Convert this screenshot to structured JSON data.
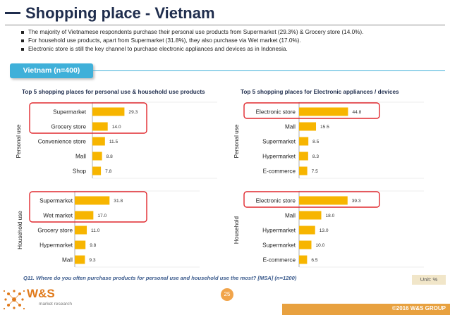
{
  "header": {
    "title": "Shopping place - Vietnam"
  },
  "bullets": [
    "The majority of Vietnamese respondents purchase their personal use products from Supermarket (29.3%) & Grocery store (14.0%).",
    "For household use products, apart from Supermarket (31.8%), they also purchase via Wet market (17.0%).",
    "Electronic store is still the key channel to purchase electronic appliances and devices as in Indonesia."
  ],
  "badge": {
    "label": "Vietnam (n=400)"
  },
  "colors": {
    "bar": "#f7b500",
    "highlight": "#e0282e",
    "accent": "#3fb0d9",
    "title": "#1f2d4d"
  },
  "panels": {
    "left_title": "Top 5 shopping places for personal use & household use products",
    "right_title": "Top 5 shopping places for Electronic appliances / devices"
  },
  "chart_data": [
    {
      "type": "bar",
      "orientation": "horizontal",
      "group": "Personal use",
      "highlight_top": 2,
      "categories": [
        "Supermarket",
        "Grocery store",
        "Convenience store",
        "Mall",
        "Shop"
      ],
      "values": [
        29.3,
        14.0,
        11.5,
        8.8,
        7.8
      ]
    },
    {
      "type": "bar",
      "orientation": "horizontal",
      "group": "Household use",
      "highlight_top": 2,
      "categories": [
        "Supermarket",
        "Wet market",
        "Grocery store",
        "Hypermarket",
        "Mall"
      ],
      "values": [
        31.8,
        17.0,
        11.0,
        9.8,
        9.3
      ]
    },
    {
      "type": "bar",
      "orientation": "horizontal",
      "group": "Personal use",
      "highlight_top": 1,
      "categories": [
        "Electronic store",
        "Mall",
        "Supermarket",
        "Hypermarket",
        "E-commerce"
      ],
      "values": [
        44.8,
        15.5,
        8.5,
        8.3,
        7.5
      ]
    },
    {
      "type": "bar",
      "orientation": "horizontal",
      "group": "Household",
      "highlight_top": 1,
      "categories": [
        "Electronic store",
        "Mall",
        "Hypermarket",
        "Supermarket",
        "E-commerce"
      ],
      "values": [
        39.3,
        18.0,
        13.0,
        10.0,
        6.5
      ]
    }
  ],
  "footer": {
    "question": "Q11. Where do you often purchase products for personal use and household use the most? [MSA] (n=1200)",
    "unit": "Unit: %",
    "page": "25",
    "brand": "W&S",
    "brand_sub": "market research",
    "copyright": "©2016 W&S GROUP"
  }
}
